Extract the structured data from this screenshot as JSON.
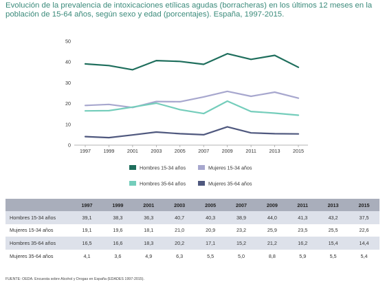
{
  "title": "Evolución de la prevalencia de intoxicaciones etílicas agudas (borracheras) en los últimos 12 meses en la población de 15-64 años, según sexo y edad (porcentajes). España, 1997-2015.",
  "chart_data": {
    "type": "line",
    "x": [
      "1997",
      "1999",
      "2001",
      "2003",
      "2005",
      "2007",
      "2009",
      "2011",
      "2013",
      "2015"
    ],
    "ylim": [
      0,
      50
    ],
    "yticks": [
      "0",
      "10",
      "20",
      "30",
      "40",
      "50"
    ],
    "grid": false,
    "legend_position": "bottom",
    "series": [
      {
        "name": "Hombres 15-34 años",
        "color": "#1e6e5c",
        "values": [
          39.1,
          38.3,
          36.3,
          40.7,
          40.3,
          38.9,
          44.0,
          41.3,
          43.2,
          37.5
        ]
      },
      {
        "name": "Mujeres 15-34 años",
        "color": "#a7a7ce",
        "values": [
          19.1,
          19.6,
          18.1,
          21.0,
          20.9,
          23.2,
          25.9,
          23.5,
          25.5,
          22.6
        ]
      },
      {
        "name": "Hombres 35-64 años",
        "color": "#74cdbb",
        "values": [
          16.5,
          16.6,
          18.3,
          20.2,
          17.1,
          15.2,
          21.2,
          16.2,
          15.4,
          14.4
        ]
      },
      {
        "name": "Mujeres 35-64 años",
        "color": "#4f587e",
        "values": [
          4.1,
          3.6,
          4.9,
          6.3,
          5.5,
          5.0,
          8.8,
          5.9,
          5.5,
          5.4
        ]
      }
    ]
  },
  "table": {
    "header": [
      "",
      "1997",
      "1999",
      "2001",
      "2003",
      "2005",
      "2007",
      "2009",
      "2011",
      "2013",
      "2015"
    ],
    "rows": [
      [
        "Hombres 15-34 años",
        "39,1",
        "38,3",
        "36,3",
        "40,7",
        "40,3",
        "38,9",
        "44,0",
        "41,3",
        "43,2",
        "37,5"
      ],
      [
        "Mujeres 15-34 años",
        "19,1",
        "19,6",
        "18,1",
        "21,0",
        "20,9",
        "23,2",
        "25,9",
        "23,5",
        "25,5",
        "22,6"
      ],
      [
        "Hombres 35-64 años",
        "16,5",
        "16,6",
        "18,3",
        "20,2",
        "17,1",
        "15,2",
        "21,2",
        "16,2",
        "15,4",
        "14,4"
      ],
      [
        "Mujeres 35-64 años",
        "4,1",
        "3,6",
        "4,9",
        "6,3",
        "5,5",
        "5,0",
        "8,8",
        "5,9",
        "5,5",
        "5,4"
      ]
    ]
  },
  "footnote": "FUENTE: OEDA. Encuesta sobre Alcohol y Drogas en España (EDADES 1997-2015)."
}
